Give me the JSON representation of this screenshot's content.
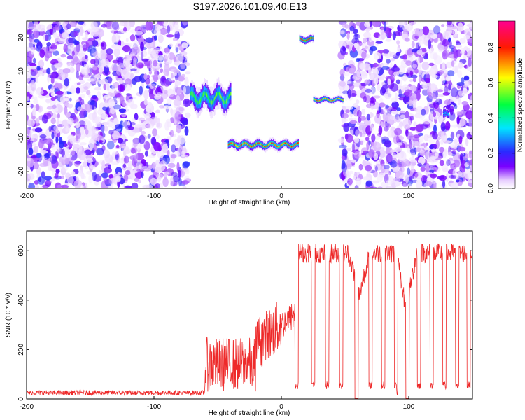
{
  "title": "S197.2026.101.09.40.E13",
  "chart_data": [
    {
      "type": "heatmap",
      "xlabel": "Height of straight line (km)",
      "ylabel": "Frequency (Hz)",
      "xlim": [
        -200,
        150
      ],
      "ylim": [
        -25,
        25
      ],
      "xticks": [
        -200,
        -100,
        0,
        100
      ],
      "yticks": [
        -20,
        -10,
        0,
        10,
        20
      ],
      "colorbar": {
        "label": "Normalized spectral amplitude",
        "range": [
          0,
          0.95
        ],
        "ticks": [
          0.0,
          0.2,
          0.4,
          0.6,
          0.8
        ],
        "colormap": [
          "#ffffff",
          "#7a00ff",
          "#2a2aff",
          "#00e6ff",
          "#00ff40",
          "#ffff00",
          "#ff0000",
          "#ff0090"
        ]
      },
      "noise_regions": [
        {
          "x_from": -200,
          "x_to": -73,
          "density": "high"
        },
        {
          "x_from": 47,
          "x_to": 150,
          "density": "high"
        }
      ],
      "features": [
        {
          "x_from": -72,
          "x_to": -40,
          "freq": 2,
          "spread": 4,
          "peak": 0.5
        },
        {
          "x_from": -42,
          "x_to": 13,
          "freq": -12,
          "spread": 1.5,
          "peak": 0.75
        },
        {
          "x_from": 14,
          "x_to": 25,
          "freq": 19.5,
          "spread": 1.2,
          "peak": 0.85
        },
        {
          "x_from": 25,
          "x_to": 48,
          "freq": 1.5,
          "spread": 1.0,
          "peak": 0.7
        },
        {
          "x_from": 127,
          "x_to": 131,
          "freq": -3,
          "spread": 1.5,
          "peak": 0.3
        }
      ]
    },
    {
      "type": "line",
      "xlabel": "Height of straight line (km)",
      "ylabel": "SNR (10 * v/v)",
      "xlim": [
        -200,
        150
      ],
      "ylim": [
        0,
        680
      ],
      "xticks": [
        -200,
        -100,
        0,
        100
      ],
      "yticks": [
        0,
        200,
        400,
        600
      ],
      "series": [
        {
          "color": "#ee2a2a",
          "segments": [
            {
              "x_from": -200,
              "x_to": -60,
              "level": 25,
              "noise": 10
            },
            {
              "x_from": -60,
              "x_to": -20,
              "level": 140,
              "noise": 110
            },
            {
              "x_from": -20,
              "x_to": 0,
              "level": 220,
              "noise": 110
            },
            {
              "x_from": 0,
              "x_to": 12,
              "level": 300,
              "noise": 60
            },
            {
              "x_from": 12,
              "x_to": 150,
              "level": 590,
              "noise": 40
            }
          ],
          "dropouts": [
            12,
            25,
            36,
            47,
            59,
            70,
            80,
            90,
            99,
            108,
            118,
            128,
            138,
            147
          ],
          "dropout_level": 55,
          "notches": [
            {
              "x": 61,
              "depth": 170
            },
            {
              "x": 98,
              "depth": 230
            }
          ]
        }
      ]
    }
  ]
}
